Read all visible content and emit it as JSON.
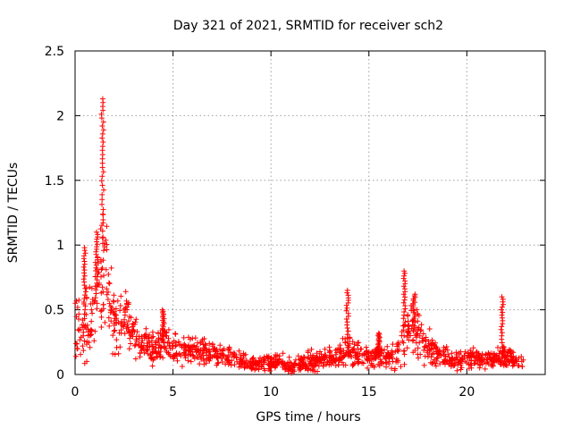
{
  "chart_data": {
    "type": "scatter",
    "title": "Day 321 of 2021, SRMTID for receiver sch2",
    "xlabel": "GPS time / hours",
    "ylabel": "SRMTID / TECUs",
    "xlim": [
      0,
      24
    ],
    "ylim": [
      0,
      2.5
    ],
    "xticks": [
      "0",
      "5",
      "10",
      "15",
      "20"
    ],
    "xtick_values": [
      0,
      5,
      10,
      15,
      20
    ],
    "yticks": [
      "0",
      "0.5",
      "1",
      "1.5",
      "2",
      "2.5"
    ],
    "ytick_values": [
      0,
      0.5,
      1,
      1.5,
      2,
      2.5
    ],
    "grid": true,
    "marker": "plus",
    "series_color": "#ff0000",
    "envelope": {
      "hours": [
        0.0,
        0.3,
        0.6,
        0.9,
        1.1,
        1.3,
        1.45,
        1.7,
        2.0,
        2.3,
        2.6,
        2.9,
        3.2,
        3.6,
        4.0,
        4.5,
        5.0,
        5.5,
        6.0,
        6.5,
        7.0,
        7.5,
        8.0,
        8.5,
        9.0,
        9.5,
        10.0,
        10.5,
        11.0,
        11.5,
        12.0,
        12.5,
        13.0,
        13.5,
        13.9,
        14.3,
        14.8,
        15.2,
        15.6,
        16.0,
        16.5,
        16.8,
        17.2,
        17.6,
        18.0,
        18.5,
        19.0,
        19.5,
        20.0,
        20.5,
        21.0,
        21.5,
        21.8,
        22.2,
        22.6,
        22.9
      ],
      "median": [
        0.38,
        0.35,
        0.4,
        0.42,
        0.55,
        0.75,
        0.95,
        0.55,
        0.38,
        0.42,
        0.45,
        0.35,
        0.25,
        0.22,
        0.2,
        0.25,
        0.2,
        0.18,
        0.17,
        0.18,
        0.17,
        0.15,
        0.12,
        0.1,
        0.08,
        0.08,
        0.09,
        0.1,
        0.06,
        0.08,
        0.1,
        0.12,
        0.13,
        0.14,
        0.18,
        0.15,
        0.13,
        0.14,
        0.16,
        0.12,
        0.15,
        0.3,
        0.35,
        0.3,
        0.22,
        0.15,
        0.13,
        0.12,
        0.12,
        0.13,
        0.12,
        0.12,
        0.14,
        0.12,
        0.1,
        0.09
      ],
      "spread": [
        0.2,
        0.18,
        0.22,
        0.25,
        0.3,
        0.4,
        0.5,
        0.28,
        0.18,
        0.15,
        0.14,
        0.12,
        0.1,
        0.09,
        0.09,
        0.1,
        0.08,
        0.07,
        0.07,
        0.07,
        0.07,
        0.06,
        0.05,
        0.05,
        0.04,
        0.04,
        0.04,
        0.04,
        0.04,
        0.04,
        0.05,
        0.05,
        0.05,
        0.06,
        0.1,
        0.07,
        0.06,
        0.06,
        0.07,
        0.06,
        0.07,
        0.15,
        0.15,
        0.12,
        0.1,
        0.06,
        0.05,
        0.05,
        0.05,
        0.05,
        0.05,
        0.05,
        0.08,
        0.05,
        0.05,
        0.04
      ]
    },
    "peaks": [
      {
        "hour": 1.4,
        "max": 2.13
      },
      {
        "hour": 1.1,
        "max": 1.1
      },
      {
        "hour": 0.5,
        "max": 0.98
      },
      {
        "hour": 4.5,
        "max": 0.5
      },
      {
        "hour": 13.9,
        "max": 0.65
      },
      {
        "hour": 16.8,
        "max": 0.8
      },
      {
        "hour": 17.3,
        "max": 0.62
      },
      {
        "hour": 21.8,
        "max": 0.6
      },
      {
        "hour": 15.5,
        "max": 0.32
      }
    ],
    "point_count": 1400
  }
}
